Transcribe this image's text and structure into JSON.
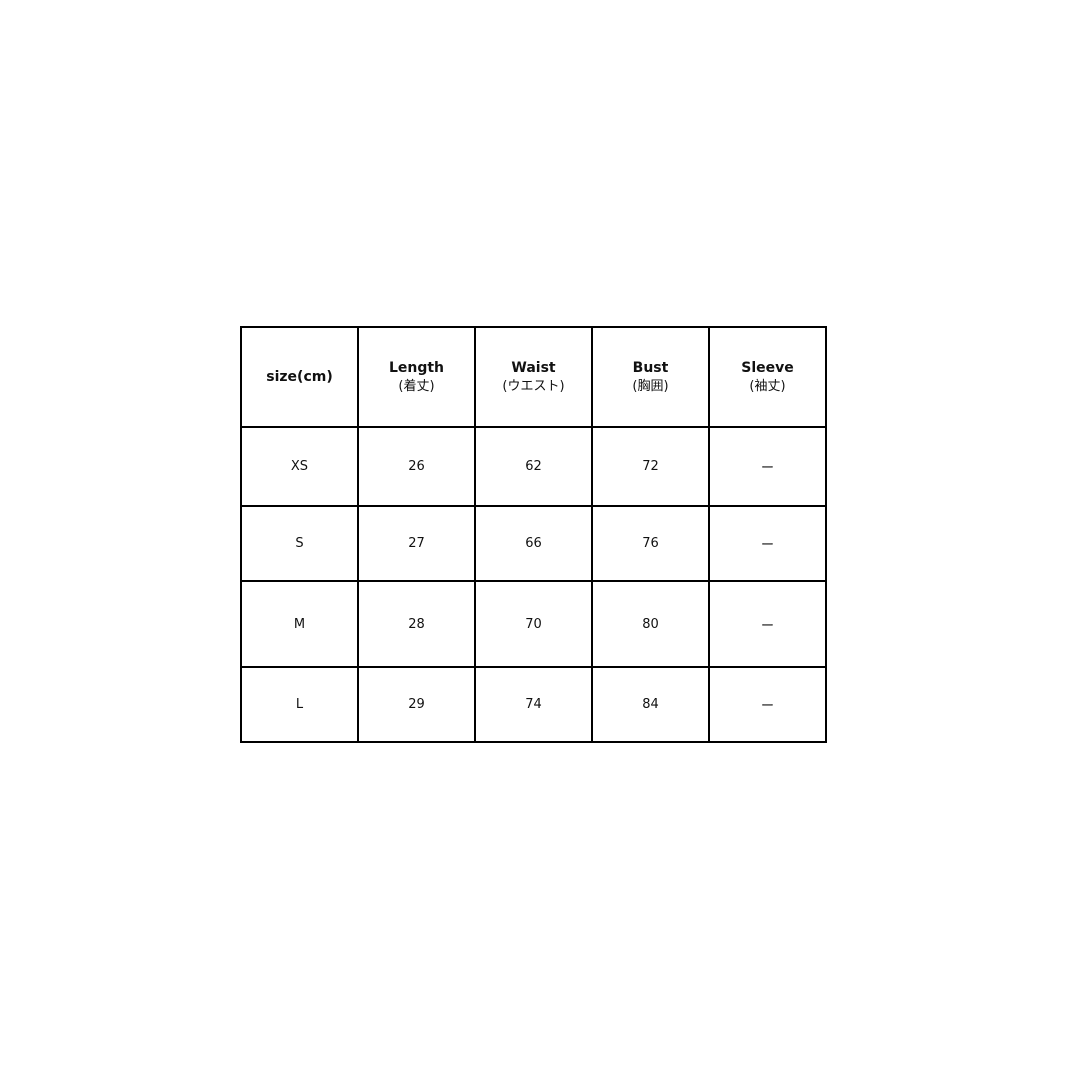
{
  "table": {
    "size_header": "size(cm)",
    "columns": [
      {
        "label": "Length",
        "sub": "(着丈)"
      },
      {
        "label": "Waist",
        "sub": "(ウエスト)"
      },
      {
        "label": "Bust",
        "sub": "(胸囲)"
      },
      {
        "label": "Sleeve",
        "sub": "(袖丈)"
      }
    ],
    "rows": [
      {
        "size": "XS",
        "values": [
          "26",
          "62",
          "72",
          "ー"
        ]
      },
      {
        "size": "S",
        "values": [
          "27",
          "66",
          "76",
          "ー"
        ]
      },
      {
        "size": "M",
        "values": [
          "28",
          "70",
          "80",
          "ー"
        ]
      },
      {
        "size": "L",
        "values": [
          "29",
          "74",
          "84",
          "ー"
        ]
      }
    ]
  }
}
